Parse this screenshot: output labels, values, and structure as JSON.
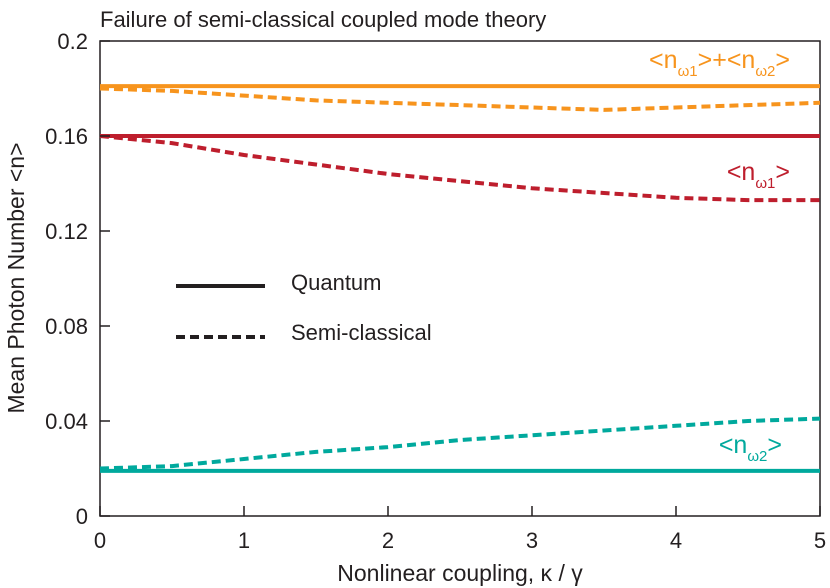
{
  "chart_data": {
    "type": "line",
    "title": "Failure of semi-classical coupled mode theory",
    "xlabel": "Nonlinear coupling, κ / γ",
    "ylabel": "Mean Photon Number  <n>",
    "xlim": [
      0,
      5
    ],
    "ylim": [
      0,
      0.2
    ],
    "x_ticks": [
      0,
      1,
      2,
      3,
      4,
      5
    ],
    "x_tick_labels": [
      "0",
      "1",
      "2",
      "3",
      "4",
      "5"
    ],
    "y_ticks": [
      0,
      0.04,
      0.08,
      0.12,
      0.16,
      0.2
    ],
    "y_tick_labels": [
      "0",
      "0.04",
      "0.08",
      "0.12",
      "0.16",
      "0.2"
    ],
    "grid": false,
    "legend": {
      "placement": "center-left",
      "entries": [
        {
          "label": "Quantum",
          "style": "solid"
        },
        {
          "label": "Semi-classical",
          "style": "dashed"
        }
      ]
    },
    "series": [
      {
        "key": "sum",
        "color": "#f7941d",
        "style": "solid",
        "x": [
          0,
          5
        ],
        "y": [
          0.181,
          0.181
        ]
      },
      {
        "key": "sum",
        "color": "#f7941d",
        "style": "dashed",
        "x": [
          0,
          0.5,
          1,
          1.5,
          2,
          2.5,
          3,
          3.5,
          4,
          4.5,
          5
        ],
        "y": [
          0.18,
          0.179,
          0.177,
          0.175,
          0.174,
          0.173,
          0.172,
          0.171,
          0.172,
          0.173,
          0.174
        ]
      },
      {
        "key": "w1",
        "color": "#be1e2d",
        "style": "solid",
        "x": [
          0,
          5
        ],
        "y": [
          0.16,
          0.16
        ]
      },
      {
        "key": "w1",
        "color": "#be1e2d",
        "style": "dashed",
        "x": [
          0,
          0.5,
          1,
          1.5,
          2,
          2.5,
          3,
          3.5,
          4,
          4.5,
          5
        ],
        "y": [
          0.16,
          0.157,
          0.152,
          0.148,
          0.144,
          0.141,
          0.138,
          0.136,
          0.134,
          0.133,
          0.133
        ]
      },
      {
        "key": "w2",
        "color": "#00a99d",
        "style": "solid",
        "x": [
          0,
          5
        ],
        "y": [
          0.019,
          0.019
        ]
      },
      {
        "key": "w2",
        "color": "#00a99d",
        "style": "dashed",
        "x": [
          0,
          0.5,
          1,
          1.5,
          2,
          2.5,
          3,
          3.5,
          4,
          4.5,
          5
        ],
        "y": [
          0.02,
          0.021,
          0.024,
          0.027,
          0.029,
          0.032,
          0.034,
          0.036,
          0.038,
          0.04,
          0.041
        ]
      }
    ],
    "annotations": [
      {
        "key": "sum",
        "parts": [
          [
            "<n",
            ""
          ],
          [
            "ω1",
            "sub"
          ],
          [
            ">+<n",
            ""
          ],
          [
            "ω2",
            "sub"
          ],
          [
            ">",
            ""
          ]
        ],
        "color": "#f7941d"
      },
      {
        "key": "w1",
        "parts": [
          [
            "<n",
            ""
          ],
          [
            "ω1",
            "sub"
          ],
          [
            ">",
            ""
          ]
        ],
        "color": "#be1e2d"
      },
      {
        "key": "w2",
        "parts": [
          [
            "<n",
            ""
          ],
          [
            "ω2",
            "sub"
          ],
          [
            ">",
            ""
          ]
        ],
        "color": "#00a99d"
      }
    ]
  }
}
